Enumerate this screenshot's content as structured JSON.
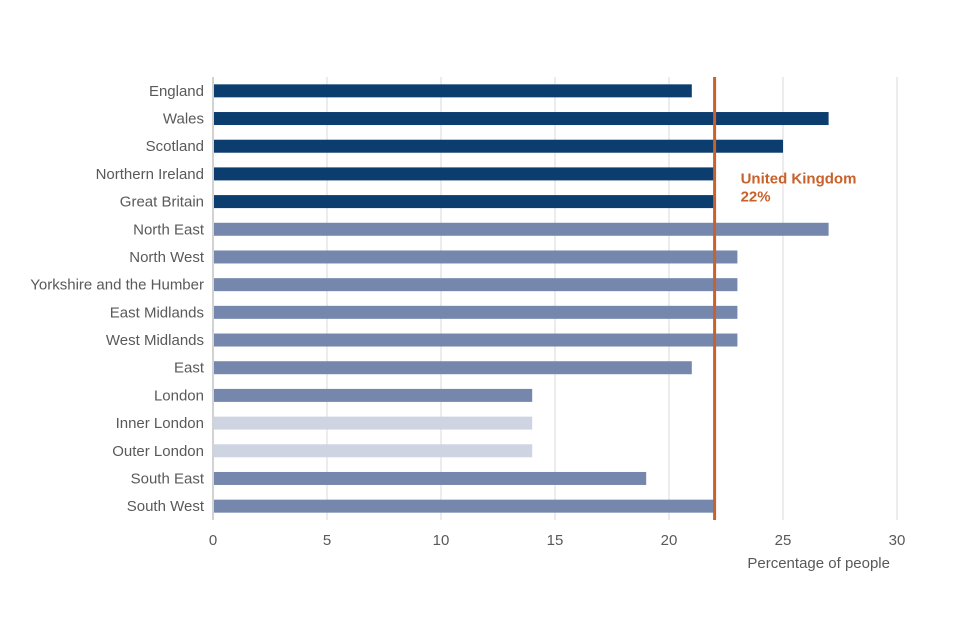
{
  "chart_data": {
    "type": "bar",
    "orientation": "horizontal",
    "xlabel": "Percentage of people",
    "xlim": [
      0,
      30
    ],
    "xticks": [
      0,
      5,
      10,
      15,
      20,
      25,
      30
    ],
    "grid": "vertical",
    "categories": [
      "England",
      "Wales",
      "Scotland",
      "Northern Ireland",
      "Great Britain",
      "North East",
      "North West",
      "Yorkshire and the Humber",
      "East Midlands",
      "West Midlands",
      "East",
      "London",
      "Inner London",
      "Outer London",
      "South East",
      "South West"
    ],
    "values": [
      21,
      27,
      25,
      22,
      22,
      27,
      23,
      23,
      23,
      23,
      21,
      14,
      14,
      14,
      19,
      22
    ],
    "groups": [
      "nation",
      "nation",
      "nation",
      "nation",
      "nation",
      "region",
      "region",
      "region",
      "region",
      "region",
      "region",
      "region",
      "sub-region",
      "sub-region",
      "region",
      "region"
    ],
    "reference_line": {
      "value": 22,
      "label": "United Kingdom",
      "value_label": "22%",
      "color": "#c8612a"
    }
  },
  "colors": {
    "nation": "#0b3d6e",
    "region": "#7587ad",
    "sub-region": "#ced4e2",
    "grid": "#d9d9d9",
    "axis": "#a6a6a6"
  }
}
